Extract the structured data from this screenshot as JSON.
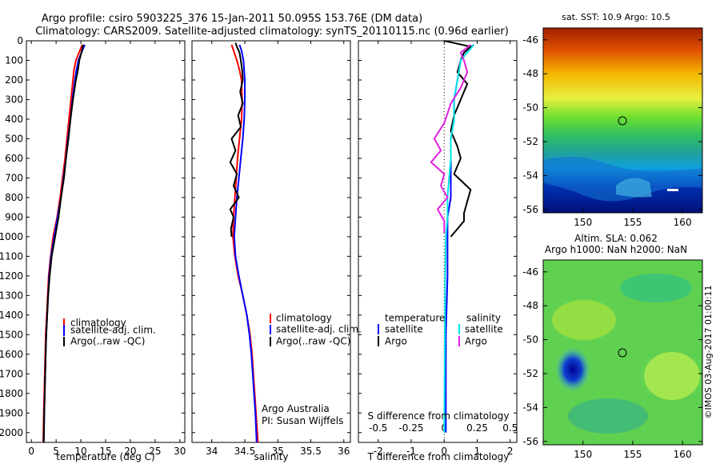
{
  "header": {
    "line1": "Argo profile: csiro 5903225_376 15-Jan-2011 50.095S 153.76E (DM data)",
    "line2": "Climatology: CARS2009. Satellite-adjusted climatology: synTS_20110115.nc (0.96d earlier)"
  },
  "colors": {
    "climatology": "#ff0000",
    "satellite": "#0000ff",
    "argo": "#000000",
    "sal_satellite": "#00e5e5",
    "sal_argo": "#e020e0"
  },
  "depth_ticks": [
    "0",
    "100",
    "200",
    "300",
    "400",
    "500",
    "600",
    "700",
    "800",
    "900",
    "1000",
    "1100",
    "1200",
    "1300",
    "1400",
    "1500",
    "1600",
    "1700",
    "1800",
    "1900",
    "2000"
  ],
  "legend": {
    "climatology": "climatology",
    "satellite": "satellite-adj. clim.",
    "argo": "Argo(..raw -QC)"
  },
  "diff_legend": {
    "temperature": "temperature",
    "salinity": "salinity",
    "satellite": "satellite",
    "argo": "Argo"
  },
  "credits": {
    "line1": "Argo Australia",
    "line2": "PI: Susan Wijffels"
  },
  "diff_labels": {
    "top": "S difference from climatology",
    "bottom": "T difference from climatology"
  },
  "sst_title": "sat. SST: 10.9 Argo: 10.5",
  "sla_title1": "Altim. SLA: 0.062",
  "sla_title2": "Argo h1000: NaN h2000: NaN",
  "map_yticks": [
    "-46",
    "-48",
    "-50",
    "-52",
    "-54",
    "-56"
  ],
  "map_xticks": [
    "150",
    "155",
    "160"
  ],
  "watermark": "©IMOS 03-Aug-2017 01:00:11",
  "chart_data": [
    {
      "type": "line",
      "xlabel": "temperature (deg C)",
      "xlim": [
        -1,
        31
      ],
      "ylim": [
        0,
        2050
      ],
      "x_ticks": [
        "0",
        "5",
        "10",
        "15",
        "20",
        "25",
        "30"
      ],
      "depth": [
        20,
        50,
        100,
        150,
        200,
        300,
        400,
        500,
        600,
        700,
        800,
        900,
        1000,
        1100,
        1200,
        1300,
        1400,
        1500,
        1600,
        1700,
        1800,
        1900,
        2050
      ],
      "series": [
        {
          "name": "climatology",
          "values": [
            10.3,
            9.8,
            9.0,
            8.6,
            8.4,
            8.0,
            7.6,
            7.2,
            6.8,
            6.3,
            5.8,
            5.2,
            4.4,
            3.9,
            3.5,
            3.3,
            3.1,
            2.9,
            2.8,
            2.7,
            2.6,
            2.5,
            2.4
          ]
        },
        {
          "name": "satellite-adj. clim.",
          "values": [
            10.8,
            10.3,
            9.5,
            9.1,
            8.8,
            8.3,
            7.9,
            7.4,
            7.0,
            6.5,
            6.0,
            5.3,
            4.6,
            4.0,
            3.6,
            3.4,
            3.2,
            3.0,
            2.9,
            2.8,
            2.7,
            2.6,
            2.5
          ]
        },
        {
          "name": "Argo(..raw -QC)",
          "values": [
            10.5,
            10.2,
            9.7,
            9.4,
            9.0,
            8.4,
            7.9,
            7.5,
            7.0,
            6.6,
            6.0,
            5.5,
            4.8,
            4.1,
            3.7,
            3.4,
            3.2,
            3.0,
            2.9,
            2.8,
            2.7,
            2.6,
            2.5
          ]
        }
      ]
    },
    {
      "type": "line",
      "xlabel": "salinity",
      "xlim": [
        33.7,
        36.1
      ],
      "ylim": [
        0,
        2050
      ],
      "x_ticks": [
        "34",
        "34.5",
        "35",
        "35.5",
        "36"
      ],
      "series": [
        {
          "name": "climatology",
          "depth": [
            20,
            50,
            100,
            150,
            200,
            300,
            400,
            500,
            600,
            700,
            800,
            900,
            1000,
            1100,
            1200,
            1300,
            1400,
            1500,
            1600,
            1700,
            1800,
            1900,
            2050
          ],
          "values": [
            34.3,
            34.33,
            34.38,
            34.42,
            34.45,
            34.46,
            34.45,
            34.42,
            34.39,
            34.37,
            34.35,
            34.33,
            34.32,
            34.35,
            34.4,
            34.47,
            34.53,
            34.58,
            34.61,
            34.63,
            34.65,
            34.67,
            34.7
          ]
        },
        {
          "name": "satellite-adj. clim.",
          "depth": [
            20,
            50,
            100,
            150,
            200,
            300,
            400,
            500,
            600,
            700,
            800,
            900,
            1000,
            1100,
            1200,
            1300,
            1400,
            1500,
            1600,
            1700,
            1800,
            1900,
            2050
          ],
          "values": [
            34.42,
            34.45,
            34.48,
            34.49,
            34.5,
            34.5,
            34.49,
            34.47,
            34.44,
            34.41,
            34.38,
            34.36,
            34.34,
            34.36,
            34.41,
            34.47,
            34.53,
            34.57,
            34.6,
            34.62,
            34.64,
            34.66,
            34.68
          ]
        },
        {
          "name": "Argo(..raw -QC)",
          "depth": [
            10,
            30,
            60,
            100,
            150,
            200,
            260,
            320,
            380,
            440,
            500,
            560,
            620,
            680,
            740,
            800,
            860,
            900,
            960,
            1000
          ],
          "values": [
            34.36,
            34.38,
            34.42,
            34.44,
            34.46,
            34.47,
            34.43,
            34.47,
            34.4,
            34.44,
            34.3,
            34.36,
            34.28,
            34.38,
            34.33,
            34.41,
            34.28,
            34.33,
            34.29,
            34.3
          ]
        }
      ]
    },
    {
      "type": "line",
      "xlabel": "T difference from climatology",
      "x2label": "S difference from climatology",
      "xlim": [
        -2.6,
        2.2
      ],
      "ylim": [
        0,
        2050
      ],
      "x_ticks": [
        "-2",
        "-1",
        "0",
        "1",
        "2"
      ],
      "x2_ticks": [
        "-0.5",
        "-0.25",
        "0",
        "0.25",
        "0.5"
      ],
      "series": [
        {
          "name": "temperature satellite",
          "depth": [
            20,
            60,
            100,
            200,
            300,
            400,
            500,
            600,
            700,
            800,
            900,
            1000,
            1200,
            1500,
            2000
          ],
          "values": [
            0.9,
            0.6,
            0.5,
            0.4,
            0.3,
            0.3,
            0.2,
            0.2,
            0.2,
            0.2,
            0.1,
            0.1,
            0.1,
            0.05,
            0.05
          ]
        },
        {
          "name": "temperature Argo",
          "depth": [
            0,
            30,
            60,
            100,
            160,
            220,
            300,
            380,
            460,
            540,
            600,
            680,
            760,
            820,
            880,
            920,
            960,
            1000
          ],
          "values": [
            0.0,
            0.8,
            0.6,
            0.5,
            0.4,
            0.7,
            0.5,
            0.3,
            0.2,
            0.4,
            0.5,
            0.3,
            0.8,
            0.7,
            0.6,
            0.6,
            0.4,
            0.2
          ]
        },
        {
          "name": "salinity satellite",
          "depth": [
            20,
            60,
            100,
            200,
            300,
            400,
            500,
            600,
            700,
            800,
            900,
            1000,
            1200,
            1500,
            2000
          ],
          "values": [
            0.9,
            0.7,
            0.5,
            0.4,
            0.3,
            0.3,
            0.2,
            0.2,
            0.15,
            0.1,
            0.1,
            0.05,
            0.03,
            0.02,
            0.0
          ]
        },
        {
          "name": "salinity Argo",
          "depth": [
            20,
            60,
            100,
            160,
            240,
            320,
            420,
            500,
            560,
            620,
            680,
            740,
            800,
            860,
            920,
            980
          ],
          "values": [
            0.8,
            0.5,
            0.6,
            0.7,
            0.5,
            0.2,
            0.0,
            -0.3,
            -0.1,
            -0.4,
            0.0,
            -0.1,
            0.1,
            -0.2,
            0.0,
            0.0
          ]
        }
      ]
    }
  ]
}
